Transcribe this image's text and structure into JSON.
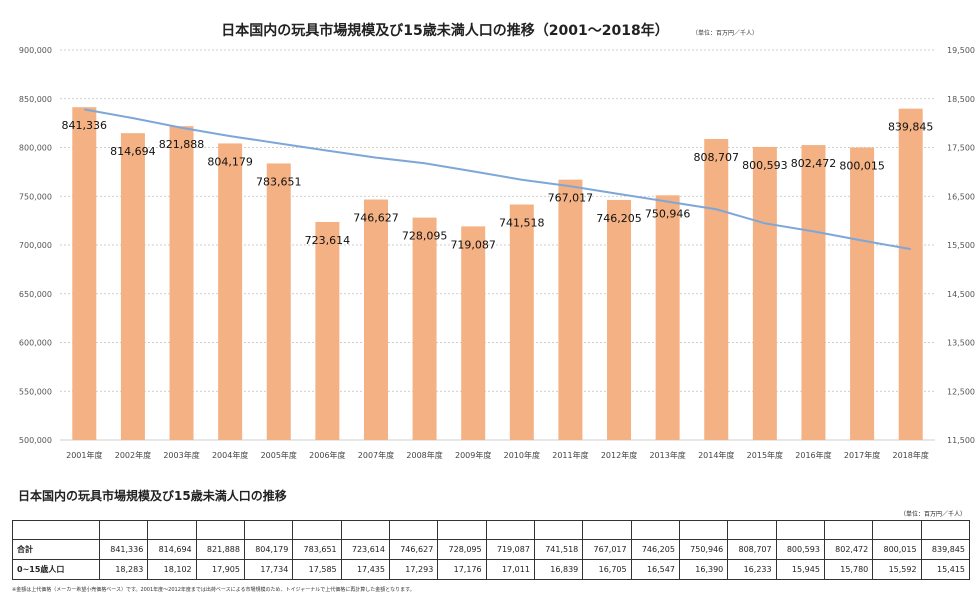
{
  "chart_data": {
    "type": "bar",
    "title": "日本国内の玩具市場規模及び15歳未満人口の推移（2001～2018年）",
    "unit_note": "（単位：百万円／千人）",
    "categories": [
      "2001年度",
      "2002年度",
      "2003年度",
      "2004年度",
      "2005年度",
      "2006年度",
      "2007年度",
      "2008年度",
      "2009年度",
      "2010年度",
      "2011年度",
      "2012年度",
      "2013年度",
      "2014年度",
      "2015年度",
      "2016年度",
      "2017年度",
      "2018年度"
    ],
    "series": [
      {
        "name": "合計",
        "kind": "bar",
        "axis": "left",
        "color": "#f4b183",
        "values": [
          841336,
          814694,
          821888,
          804179,
          783651,
          723614,
          746627,
          728095,
          719087,
          741518,
          767017,
          746205,
          750946,
          808707,
          800593,
          802472,
          800015,
          839845
        ],
        "labels": [
          "841,336",
          "814,694",
          "821,888",
          "804,179",
          "783,651",
          "723,614",
          "746,627",
          "728,095",
          "719,087",
          "741,518",
          "767,017",
          "746,205",
          "750,946",
          "808,707",
          "800,593",
          "802,472",
          "800,015",
          "839,845"
        ]
      },
      {
        "name": "0~15歳人口",
        "kind": "line",
        "axis": "right",
        "color": "#7da7d9",
        "values": [
          18283,
          18102,
          17905,
          17734,
          17585,
          17435,
          17293,
          17176,
          17011,
          16839,
          16705,
          16547,
          16390,
          16233,
          15945,
          15780,
          15592,
          15415
        ]
      }
    ],
    "ylim_left": [
      500000,
      900000
    ],
    "yticks_left": [
      "500,000",
      "550,000",
      "600,000",
      "650,000",
      "700,000",
      "750,000",
      "800,000",
      "850,000",
      "900,000"
    ],
    "ylim_right": [
      11500,
      19500
    ],
    "yticks_right": [
      "11,500",
      "12,500",
      "13,500",
      "14,500",
      "15,500",
      "16,500",
      "17,500",
      "18,500",
      "19,500"
    ],
    "grid": true
  },
  "table": {
    "title": "日本国内の玩具市場規模及び15歳未満人口の推移",
    "unit_note": "（単位：百万円／千人）",
    "rows": [
      {
        "label": "合計",
        "values": [
          "841,336",
          "814,694",
          "821,888",
          "804,179",
          "783,651",
          "723,614",
          "746,627",
          "728,095",
          "719,087",
          "741,518",
          "767,017",
          "746,205",
          "750,946",
          "808,707",
          "800,593",
          "802,472",
          "800,015",
          "839,845"
        ]
      },
      {
        "label": "0~15歳人口",
        "values": [
          "18,283",
          "18,102",
          "17,905",
          "17,734",
          "17,585",
          "17,435",
          "17,293",
          "17,176",
          "17,011",
          "16,839",
          "16,705",
          "16,547",
          "16,390",
          "16,233",
          "15,945",
          "15,780",
          "15,592",
          "15,415"
        ]
      }
    ],
    "footnote": "※金額は上代価格（メーカー希望小売価格ベース）です。2001年度～2012年度までは出荷ベースによる市場規模のため、トイジャーナルで上代価格に再計算した金額となります。"
  }
}
